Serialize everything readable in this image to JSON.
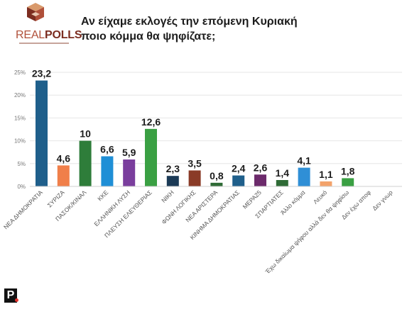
{
  "brand": {
    "name_part1": "REAL",
    "name_part2": "POLLS",
    "mark_colors": [
      "#7c2d20",
      "#b0503a",
      "#d99a6c"
    ]
  },
  "title": {
    "line1": "Αν είχαμε εκλογές την επόμενη Κυριακή",
    "line2": "ποιο κόμμα θα ψηφίζατε;"
  },
  "footer_mark": {
    "letter": "P",
    "accent": "#e3342f"
  },
  "chart_data": {
    "type": "bar",
    "title": "Αν είχαμε εκλογές την επόμενη Κυριακή ποιο κόμμα θα ψηφίζατε;",
    "xlabel": "",
    "ylabel": "",
    "ylim": [
      0,
      25
    ],
    "yticks": [
      "0%",
      "5%",
      "10%",
      "15%",
      "20%",
      "25%"
    ],
    "grid": true,
    "categories": [
      "ΝΕΑ ΔΗΜΟΚΡΑΤΙΑ",
      "ΣΥΡΙΖΑ",
      "ΠΑΣΟΚ/ΚΙΝΑΛ",
      "ΚΚΕ",
      "ΕΛΛΗΝΙΚΗ ΛΥΣΗ",
      "ΠΛΕΥΣΗ ΕΛΕΥΘΕΡΙΑΣ",
      "ΝΙΚΗ",
      "ΦΩΝΗ ΛΟΓΙΚΗΣ",
      "ΝΕΑ ΑΡΙΣΤΕΡΑ",
      "ΚΙΝΗΜΑ ΔΗΜΟΚΡΑΤΙΑΣ",
      "ΜΕΡΑ25",
      "ΣΠΑΡΤΙΑΤΕΣ",
      "Άλλο κόμμα",
      "Λευκό",
      "Έχω δικαίωμα ψήφου αλλά δεν θα ψηφίσω",
      "Δεν έχω αποφ",
      "Δεν γνωρ"
    ],
    "values": [
      23.2,
      4.6,
      10,
      6.6,
      5.9,
      12.6,
      2.3,
      3.5,
      0.8,
      2.4,
      2.6,
      1.4,
      4.1,
      1.1,
      1.8,
      null,
      null
    ],
    "value_labels": [
      "23,2",
      "4,6",
      "10",
      "6,6",
      "5,9",
      "12,6",
      "2,3",
      "3,5",
      "0,8",
      "2,4",
      "2,6",
      "1,4",
      "4,1",
      "1,1",
      "1,8",
      "",
      ""
    ],
    "colors": [
      "#1f5f8b",
      "#f07f4a",
      "#2e7d3a",
      "#1f8fd6",
      "#7a3e9d",
      "#3aa043",
      "#1b3a56",
      "#8a3b27",
      "#2f6b36",
      "#1f5f8b",
      "#6c2a6b",
      "#2f6b36",
      "#2f8fd6",
      "#f3a36b",
      "#3aa043",
      "#999999",
      "#999999"
    ]
  }
}
